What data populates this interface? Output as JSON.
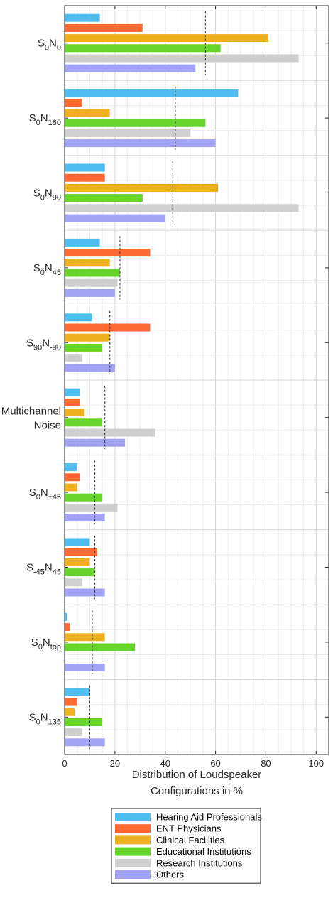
{
  "chart_data": {
    "type": "bar",
    "orientation": "horizontal",
    "categories": [
      {
        "base": "S",
        "sub1": "0",
        "mid": "N",
        "sub2": "0"
      },
      {
        "base": "S",
        "sub1": "0",
        "mid": "N",
        "sub2": "180"
      },
      {
        "base": "S",
        "sub1": "0",
        "mid": "N",
        "sub2": "90"
      },
      {
        "base": "S",
        "sub1": "0",
        "mid": "N",
        "sub2": "45"
      },
      {
        "base": "S",
        "sub1": "90",
        "mid": "N",
        "sub2": "-90"
      },
      {
        "lines": [
          "Multichannel",
          "Noise"
        ]
      },
      {
        "base": "S",
        "sub1": "0",
        "mid": "N",
        "sub2": "±45"
      },
      {
        "base": "S",
        "sub1": "-45",
        "mid": "N",
        "sub2": "45"
      },
      {
        "base": "S",
        "sub1": "0",
        "mid": "N",
        "sub2": "top"
      },
      {
        "base": "S",
        "sub1": "0",
        "mid": "N",
        "sub2": "135"
      }
    ],
    "series": [
      {
        "name": "Hearing Aid Professionals",
        "color": "#4DBEEE",
        "values": [
          14,
          69,
          16,
          14,
          11,
          6,
          5,
          10,
          1,
          10
        ]
      },
      {
        "name": "ENT Physicians",
        "color": "#FF6A33",
        "values": [
          31,
          7,
          16,
          34,
          34,
          6,
          6,
          13,
          2,
          5
        ]
      },
      {
        "name": "Clinical Facilities",
        "color": "#EDB120",
        "values": [
          81,
          18,
          61,
          18,
          18,
          8,
          5,
          10,
          16,
          4
        ]
      },
      {
        "name": "Educational Institutions",
        "color": "#66D42A",
        "values": [
          62,
          56,
          31,
          22,
          15,
          15,
          15,
          12,
          28,
          15
        ]
      },
      {
        "name": "Research Institutions",
        "color": "#CFCFCF",
        "values": [
          93,
          50,
          93,
          21,
          7,
          36,
          21,
          7,
          0,
          7
        ]
      },
      {
        "name": "Others",
        "color": "#A3A3F5",
        "values": [
          52,
          60,
          40,
          20,
          20,
          24,
          16,
          16,
          16,
          16
        ]
      }
    ],
    "means": [
      56,
      44,
      43,
      22,
      18,
      16,
      12,
      12,
      11,
      10
    ],
    "xlim": [
      0,
      105
    ],
    "xticks": [
      0,
      20,
      40,
      60,
      80,
      100
    ],
    "xlabel": [
      "Distribution of Loudspeaker",
      "Configurations in %"
    ],
    "grid": true,
    "legend_position": "bottom"
  }
}
